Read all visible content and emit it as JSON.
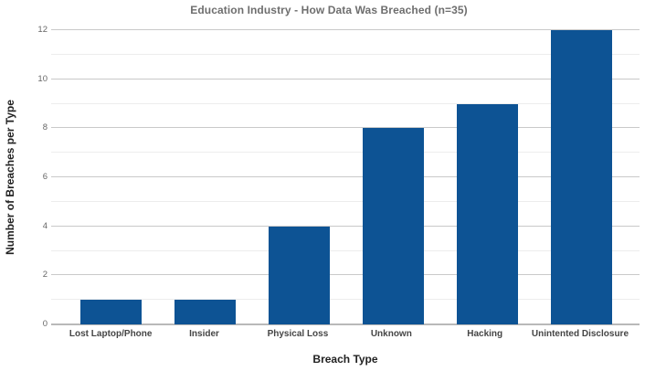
{
  "colors": {
    "bar": "#0d5394",
    "title": "#6e6e6e",
    "axis_title": "#222222",
    "category_label": "#454545",
    "tick_label": "#666666",
    "grid_major": "#c9c9c9",
    "grid_minor": "#ededed",
    "baseline": "#b9b9b9",
    "background": "#ffffff"
  },
  "chart_data": {
    "type": "bar",
    "title": "Education Industry - How Data Was Breached (n=35)",
    "categories": [
      "Lost Laptop/Phone",
      "Insider",
      "Physical Loss",
      "Unknown",
      "Hacking",
      "Unintented Disclosure"
    ],
    "values": [
      1,
      1,
      4,
      8,
      9,
      12
    ],
    "xlabel": "Breach Type",
    "ylabel": "Number of Breaches per Type",
    "ylim": [
      0,
      12
    ],
    "y_major_ticks": [
      0,
      2,
      4,
      6,
      8,
      10,
      12
    ],
    "y_minor_ticks": [
      1,
      3,
      5,
      7,
      9,
      11
    ],
    "grid": true,
    "legend": "none",
    "total_n": 35
  }
}
